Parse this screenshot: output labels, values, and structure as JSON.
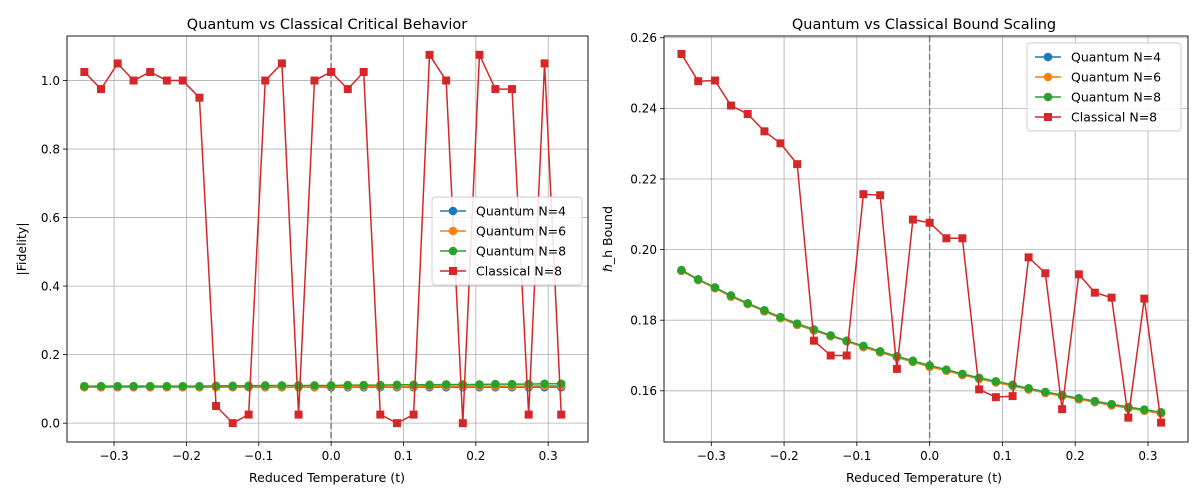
{
  "chart_data": [
    {
      "type": "line",
      "title": "Quantum vs Classical Critical Behavior",
      "xlabel": "Reduced Temperature (t)",
      "ylabel": "|Fidelity|",
      "xlim": [
        -0.365,
        0.355
      ],
      "ylim": [
        -0.055,
        1.13
      ],
      "xticks": [
        -0.3,
        -0.2,
        -0.1,
        0.0,
        0.1,
        0.2,
        0.3
      ],
      "xtick_labels": [
        "−0.3",
        "−0.2",
        "−0.1",
        "0.0",
        "0.1",
        "0.2",
        "0.3"
      ],
      "yticks": [
        0.0,
        0.2,
        0.4,
        0.6,
        0.8,
        1.0
      ],
      "ytick_labels": [
        "0.0",
        "0.2",
        "0.4",
        "0.6",
        "0.8",
        "1.0"
      ],
      "grid": true,
      "vline": 0.0,
      "legend_position": "center-right",
      "x": [
        -0.341,
        -0.318,
        -0.295,
        -0.273,
        -0.25,
        -0.227,
        -0.205,
        -0.182,
        -0.159,
        -0.136,
        -0.114,
        -0.091,
        -0.068,
        -0.045,
        -0.023,
        0.0,
        0.023,
        0.045,
        0.068,
        0.091,
        0.114,
        0.136,
        0.159,
        0.182,
        0.205,
        0.227,
        0.25,
        0.273,
        0.295,
        0.318
      ],
      "series": [
        {
          "name": "Quantum N=4",
          "color": "#1f77b4",
          "marker": "circle",
          "values": [
            0.105,
            0.105,
            0.105,
            0.105,
            0.105,
            0.105,
            0.105,
            0.105,
            0.105,
            0.105,
            0.105,
            0.105,
            0.105,
            0.105,
            0.105,
            0.105,
            0.105,
            0.105,
            0.105,
            0.105,
            0.105,
            0.105,
            0.105,
            0.105,
            0.105,
            0.105,
            0.105,
            0.105,
            0.105,
            0.105
          ]
        },
        {
          "name": "Quantum N=6",
          "color": "#ff7f0e",
          "marker": "circle",
          "values": [
            0.105,
            0.105,
            0.105,
            0.105,
            0.105,
            0.105,
            0.105,
            0.105,
            0.105,
            0.106,
            0.106,
            0.106,
            0.106,
            0.106,
            0.106,
            0.107,
            0.107,
            0.107,
            0.107,
            0.107,
            0.107,
            0.108,
            0.108,
            0.108,
            0.108,
            0.108,
            0.108,
            0.108,
            0.109,
            0.109
          ]
        },
        {
          "name": "Quantum N=8",
          "color": "#2ca02c",
          "marker": "circle",
          "values": [
            0.108,
            0.108,
            0.108,
            0.108,
            0.108,
            0.108,
            0.108,
            0.108,
            0.109,
            0.109,
            0.109,
            0.11,
            0.11,
            0.11,
            0.11,
            0.11,
            0.111,
            0.111,
            0.111,
            0.112,
            0.112,
            0.112,
            0.113,
            0.113,
            0.113,
            0.114,
            0.114,
            0.114,
            0.115,
            0.115
          ]
        },
        {
          "name": "Classical N=8",
          "color": "#d62728",
          "marker": "square",
          "values": [
            1.025,
            0.975,
            1.05,
            1.0,
            1.025,
            1.0,
            1.0,
            0.95,
            0.05,
            0.0,
            0.025,
            1.0,
            1.05,
            0.025,
            1.0,
            1.025,
            0.975,
            1.025,
            0.025,
            0.0,
            0.025,
            1.075,
            1.0,
            0.0,
            1.075,
            0.975,
            0.975,
            0.025,
            1.05,
            0.025
          ]
        }
      ]
    },
    {
      "type": "line",
      "title": "Quantum vs Classical Bound Scaling",
      "xlabel": "Reduced Temperature (t)",
      "ylabel": "ℏ_h Bound",
      "xlim": [
        -0.365,
        0.355
      ],
      "ylim": [
        0.1455,
        0.2605
      ],
      "xticks": [
        -0.3,
        -0.2,
        -0.1,
        0.0,
        0.1,
        0.2,
        0.3
      ],
      "xtick_labels": [
        "−0.3",
        "−0.2",
        "−0.1",
        "0.0",
        "0.1",
        "0.2",
        "0.3"
      ],
      "yticks": [
        0.16,
        0.18,
        0.2,
        0.22,
        0.24,
        0.26
      ],
      "ytick_labels": [
        "0.16",
        "0.18",
        "0.20",
        "0.22",
        "0.24",
        "0.26"
      ],
      "grid": true,
      "vline": 0.0,
      "legend_position": "top-right",
      "x": [
        -0.341,
        -0.318,
        -0.295,
        -0.273,
        -0.25,
        -0.227,
        -0.205,
        -0.182,
        -0.159,
        -0.136,
        -0.114,
        -0.091,
        -0.068,
        -0.045,
        -0.023,
        0.0,
        0.023,
        0.045,
        0.068,
        0.091,
        0.114,
        0.136,
        0.159,
        0.182,
        0.205,
        0.227,
        0.25,
        0.273,
        0.295,
        0.318
      ],
      "series": [
        {
          "name": "Quantum N=4",
          "color": "#1f77b4",
          "marker": "circle",
          "values": [
            0.194,
            0.1914,
            0.1891,
            0.1867,
            0.1846,
            0.1825,
            0.1806,
            0.1787,
            0.1771,
            0.1755,
            0.174,
            0.1724,
            0.1709,
            0.1695,
            0.1682,
            0.1668,
            0.1657,
            0.1645,
            0.1634,
            0.1624,
            0.1614,
            0.1604,
            0.1594,
            0.1585,
            0.1576,
            0.1568,
            0.1559,
            0.1551,
            0.1544,
            0.1536
          ]
        },
        {
          "name": "Quantum N=6",
          "color": "#ff7f0e",
          "marker": "circle",
          "values": [
            0.194,
            0.1914,
            0.1891,
            0.1867,
            0.1846,
            0.1825,
            0.1806,
            0.1787,
            0.1771,
            0.1755,
            0.174,
            0.1724,
            0.1709,
            0.1695,
            0.1682,
            0.1668,
            0.1657,
            0.1645,
            0.1634,
            0.1624,
            0.1614,
            0.1604,
            0.1594,
            0.1585,
            0.1576,
            0.1568,
            0.1559,
            0.1551,
            0.1544,
            0.1536
          ]
        },
        {
          "name": "Quantum N=8",
          "color": "#2ca02c",
          "marker": "circle",
          "values": [
            0.1942,
            0.1916,
            0.1893,
            0.187,
            0.1848,
            0.1828,
            0.1809,
            0.179,
            0.1774,
            0.1757,
            0.1742,
            0.1727,
            0.1712,
            0.1698,
            0.1685,
            0.1672,
            0.166,
            0.1648,
            0.1637,
            0.1627,
            0.1617,
            0.1607,
            0.1597,
            0.1588,
            0.1579,
            0.1571,
            0.1562,
            0.1554,
            0.1547,
            0.1539
          ]
        },
        {
          "name": "Classical N=8",
          "color": "#d62728",
          "marker": "square",
          "values": [
            0.2554,
            0.2477,
            0.2479,
            0.2408,
            0.2384,
            0.2335,
            0.2301,
            0.2242,
            0.1742,
            0.17,
            0.17,
            0.2157,
            0.2154,
            0.1662,
            0.2085,
            0.2076,
            0.2032,
            0.2032,
            0.1604,
            0.1582,
            0.1585,
            0.1978,
            0.1933,
            0.1548,
            0.193,
            0.1878,
            0.1864,
            0.1524,
            0.1861,
            0.151
          ]
        }
      ]
    }
  ]
}
